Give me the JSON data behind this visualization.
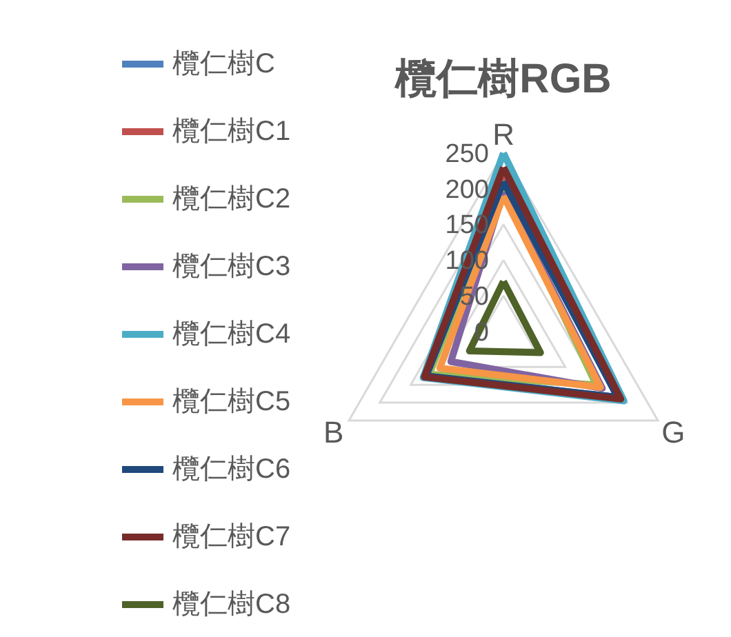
{
  "chart_data": {
    "type": "radar",
    "title": "欖仁樹RGB",
    "categories": [
      "R",
      "G",
      "B"
    ],
    "ylim": [
      0,
      250
    ],
    "yticks": [
      0,
      50,
      100,
      150,
      200,
      250
    ],
    "grid": true,
    "legend": "left",
    "series": [
      {
        "name": "欖仁樹C",
        "color": "#4f81bd",
        "values": [
          215,
          185,
          125
        ]
      },
      {
        "name": "欖仁樹C1",
        "color": "#c0504d",
        "values": [
          225,
          185,
          128
        ]
      },
      {
        "name": "欖仁樹C2",
        "color": "#9bbb59",
        "values": [
          200,
          150,
          120
        ]
      },
      {
        "name": "欖仁樹C3",
        "color": "#8064a2",
        "values": [
          195,
          160,
          85
        ]
      },
      {
        "name": "欖仁樹C4",
        "color": "#4bacc6",
        "values": [
          250,
          195,
          130
        ]
      },
      {
        "name": "欖仁樹C5",
        "color": "#f79646",
        "values": [
          190,
          157,
          103
        ]
      },
      {
        "name": "欖仁樹C6",
        "color": "#1f497d",
        "values": [
          210,
          185,
          125
        ]
      },
      {
        "name": "欖仁樹C7",
        "color": "#772c2a",
        "values": [
          230,
          190,
          128
        ]
      },
      {
        "name": "欖仁樹C8",
        "color": "#4f6228",
        "values": [
          70,
          60,
          55
        ]
      }
    ]
  }
}
